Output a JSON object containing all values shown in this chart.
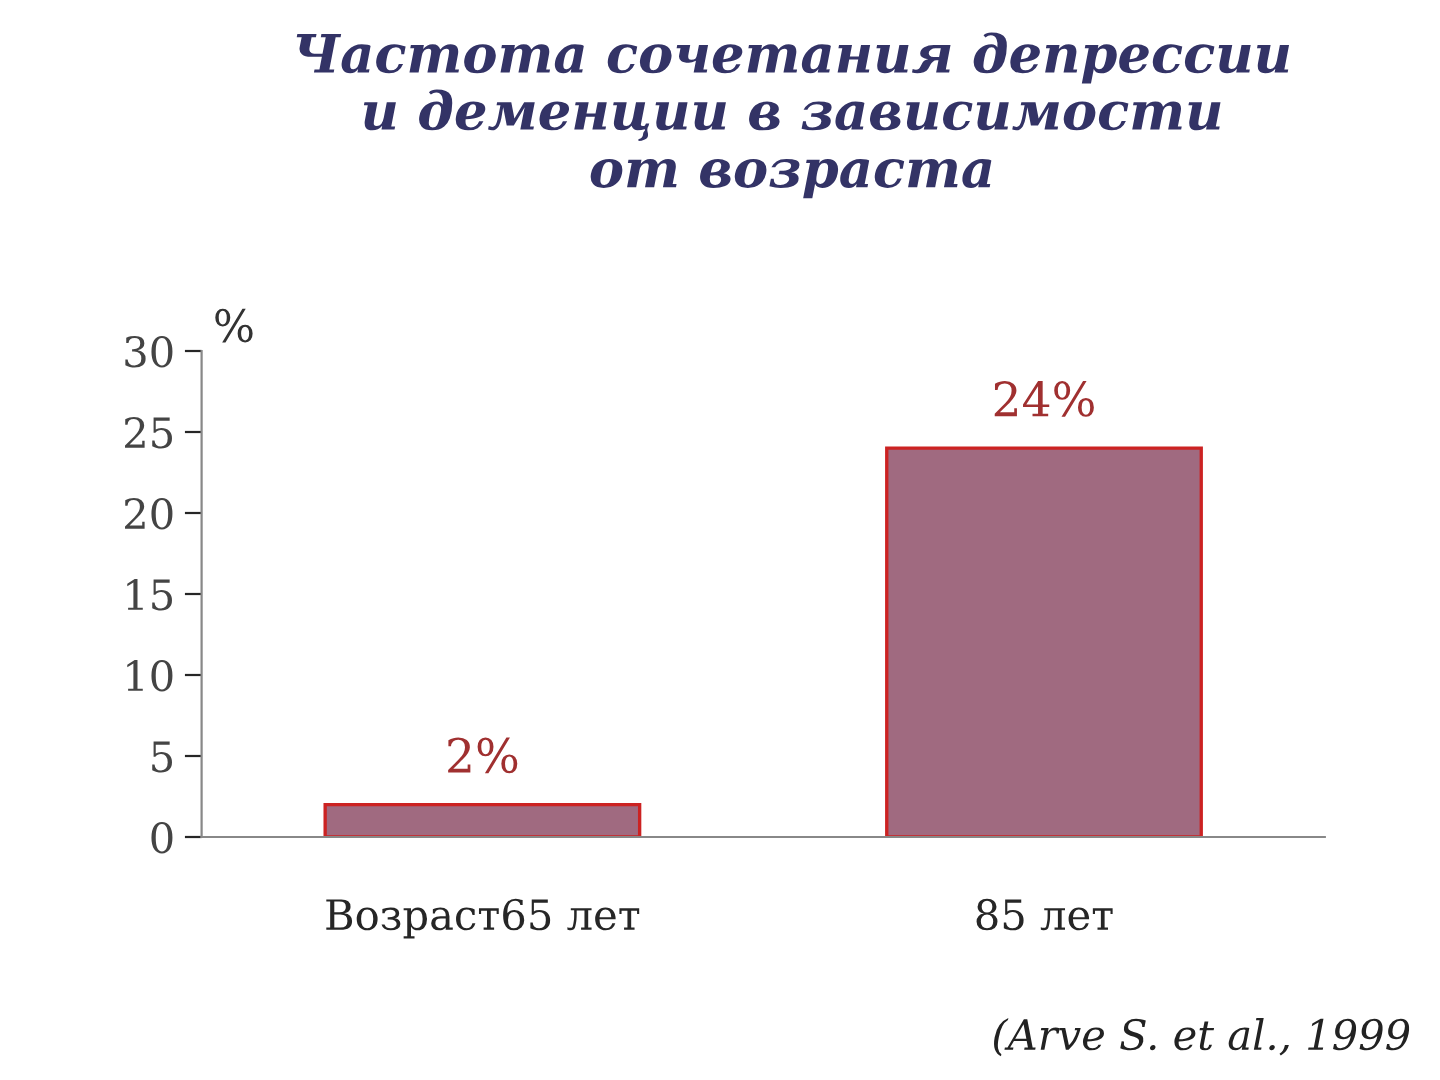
{
  "chart_data": {
    "type": "bar",
    "title": "Частота сочетания депрессии\nи деменции в зависимости\nот возраста",
    "ylabel": "%",
    "categories": [
      "Возраст65 лет",
      "85 лет"
    ],
    "values": [
      2,
      24
    ],
    "value_labels": [
      "2%",
      "24%"
    ],
    "color": "#a06a80",
    "ylim": [
      0,
      30
    ],
    "yticks": [
      0,
      5,
      10,
      15,
      20,
      25,
      30
    ],
    "grid": false,
    "legend": false,
    "annotations": [
      "(Arve S. et al., 1999"
    ]
  }
}
